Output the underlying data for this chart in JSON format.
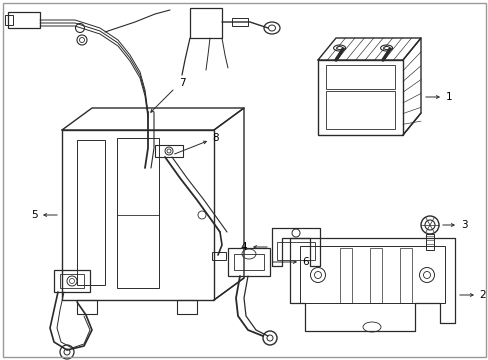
{
  "bg_color": "#ffffff",
  "line_color": "#2a2a2a",
  "label_color": "#000000",
  "fig_width": 4.89,
  "fig_height": 3.6,
  "dpi": 100
}
